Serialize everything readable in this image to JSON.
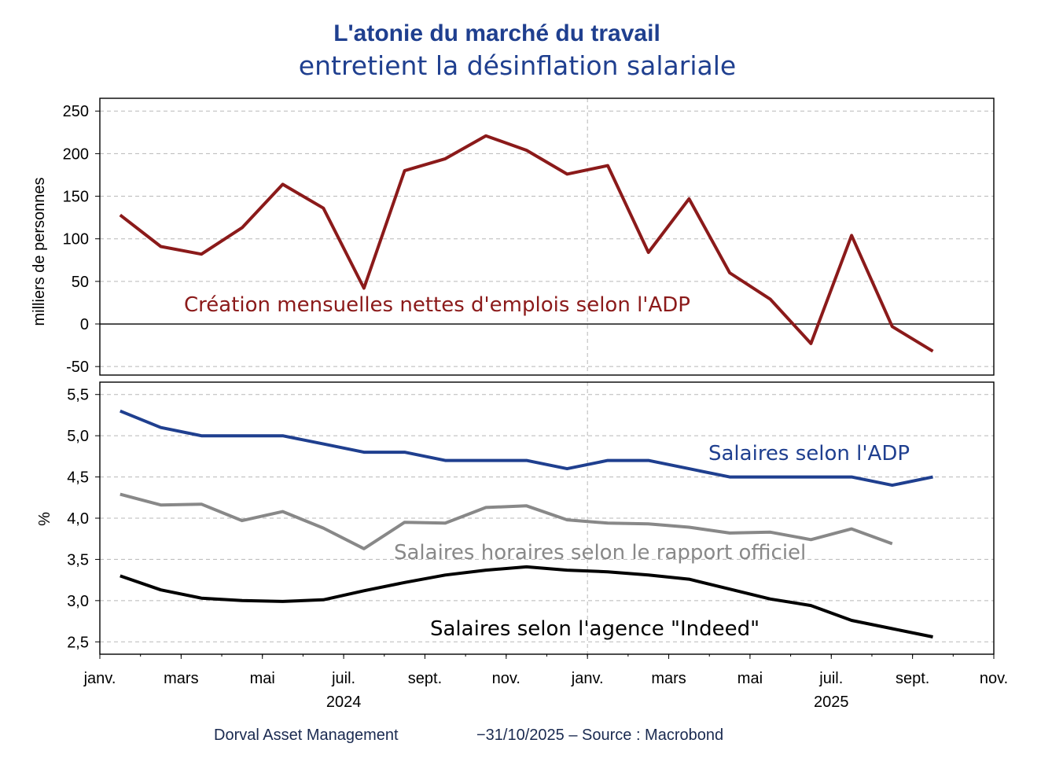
{
  "title": {
    "line1": "L'atonie du marché du travail",
    "line2": "entretient la désinflation salariale"
  },
  "footer": {
    "left": "Dorval Asset Management",
    "right": "−31/10/2025  –  Source : Macrobond"
  },
  "colors": {
    "emplois": "#8b1a1a",
    "adp_wages": "#1f3f8f",
    "official_wages": "#888888",
    "indeed_wages": "#000000"
  },
  "chart_data": [
    {
      "type": "line",
      "panel": "top",
      "ylabel": "milliers de personnes",
      "ylim": [
        -60,
        265
      ],
      "yticks": [
        -50,
        0,
        50,
        100,
        150,
        200,
        250
      ],
      "ytick_labels": [
        "-50",
        "0",
        "50",
        "100",
        "150",
        "200",
        "250"
      ],
      "zero_line": true,
      "xlim": [
        0,
        22
      ],
      "x_tick_values": [
        0,
        2,
        4,
        6,
        8,
        10,
        12,
        14,
        16,
        18,
        20,
        22
      ],
      "x_tick_labels": [
        "janv.",
        "mars",
        "mai",
        "juil.",
        "sept.",
        "nov.",
        "janv.",
        "mars",
        "mai",
        "juil.",
        "sept.",
        "nov."
      ],
      "year_labels": [
        {
          "x": 6,
          "label": "2024"
        },
        {
          "x": 18,
          "label": "2025"
        }
      ],
      "year_divider_x": 12,
      "series": [
        {
          "name": "Création mensuelles nettes d'emplois selon l'ADP",
          "color": "#8b1a1a",
          "x": [
            0.5,
            1.5,
            2.5,
            3.5,
            4.5,
            5.5,
            6.5,
            7.5,
            8.5,
            9.5,
            10.5,
            11.5,
            12.5,
            13.5,
            14.5,
            15.5,
            16.5,
            17.5,
            18.5,
            19.5,
            20.5
          ],
          "values": [
            128,
            91,
            82,
            113,
            164,
            136,
            42,
            180,
            194,
            221,
            204,
            176,
            186,
            84,
            147,
            60,
            29,
            -23,
            104,
            -3,
            -32
          ]
        }
      ]
    },
    {
      "type": "line",
      "panel": "bottom",
      "ylabel": "%",
      "ylim": [
        2.35,
        5.65
      ],
      "yticks": [
        2.5,
        3.0,
        3.5,
        4.0,
        4.5,
        5.0,
        5.5
      ],
      "ytick_labels": [
        "2,5",
        "3,0",
        "3,5",
        "4,0",
        "4,5",
        "5,0",
        "5,5"
      ],
      "xlim": [
        0,
        22
      ],
      "series": [
        {
          "name": "Salaires selon l'ADP",
          "color": "#1f3f8f",
          "x": [
            0.5,
            1.5,
            2.5,
            3.5,
            4.5,
            5.5,
            6.5,
            7.5,
            8.5,
            9.5,
            10.5,
            11.5,
            12.5,
            13.5,
            14.5,
            15.5,
            16.5,
            17.5,
            18.5,
            19.5,
            20.5
          ],
          "values": [
            5.3,
            5.1,
            5.0,
            5.0,
            5.0,
            4.9,
            4.8,
            4.8,
            4.7,
            4.7,
            4.7,
            4.6,
            4.7,
            4.7,
            4.6,
            4.5,
            4.5,
            4.5,
            4.5,
            4.4,
            4.5
          ]
        },
        {
          "name": "Salaires horaires selon le rapport officiel",
          "color": "#888888",
          "x": [
            0.5,
            1.5,
            2.5,
            3.5,
            4.5,
            5.5,
            6.5,
            7.5,
            8.5,
            9.5,
            10.5,
            11.5,
            12.5,
            13.5,
            14.5,
            15.5,
            16.5,
            17.5,
            18.5,
            19.5
          ],
          "values": [
            4.29,
            4.16,
            4.17,
            3.97,
            4.08,
            3.88,
            3.63,
            3.95,
            3.94,
            4.13,
            4.15,
            3.98,
            3.94,
            3.93,
            3.89,
            3.82,
            3.83,
            3.74,
            3.87,
            3.69
          ]
        },
        {
          "name": "Salaires selon l'agence \"Indeed\"",
          "color": "#000000",
          "x": [
            0.5,
            1.5,
            2.5,
            3.5,
            4.5,
            5.5,
            6.5,
            7.5,
            8.5,
            9.5,
            10.5,
            11.5,
            12.5,
            13.5,
            14.5,
            15.5,
            16.5,
            17.5,
            18.5,
            19.5,
            20.5
          ],
          "values": [
            3.3,
            3.13,
            3.03,
            3.0,
            2.99,
            3.01,
            3.12,
            3.22,
            3.31,
            3.37,
            3.41,
            3.37,
            3.35,
            3.31,
            3.26,
            3.14,
            3.02,
            2.94,
            2.76,
            2.66,
            2.56
          ]
        }
      ]
    }
  ]
}
